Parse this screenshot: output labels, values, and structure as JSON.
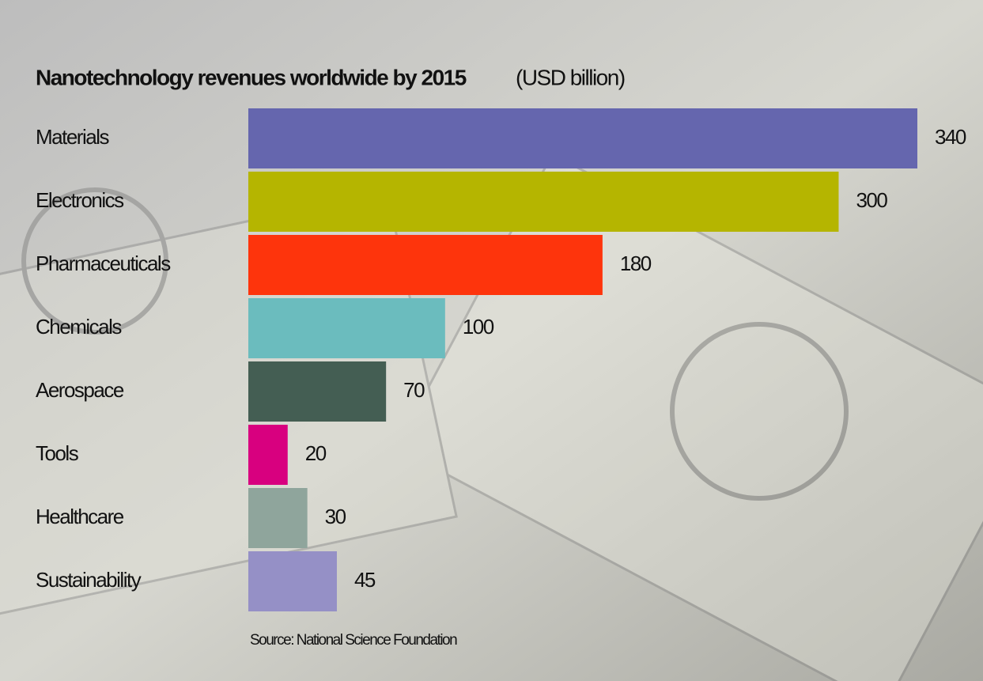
{
  "chart_data": {
    "type": "bar",
    "orientation": "horizontal",
    "title": "Nanotechnology revenues worldwide by 2015",
    "subtitle": "(USD billion)",
    "source": "Source: National Science Foundation",
    "categories": [
      "Materials",
      "Electronics",
      "Pharmaceuticals",
      "Chemicals",
      "Aerospace",
      "Tools",
      "Healthcare",
      "Sustainability"
    ],
    "values": [
      340,
      300,
      180,
      100,
      70,
      20,
      30,
      45
    ],
    "colors": [
      "#6566ae",
      "#b5b500",
      "#fe340c",
      "#6bbcbe",
      "#445e53",
      "#d8007f",
      "#8fa59c",
      "#9590c6"
    ]
  }
}
